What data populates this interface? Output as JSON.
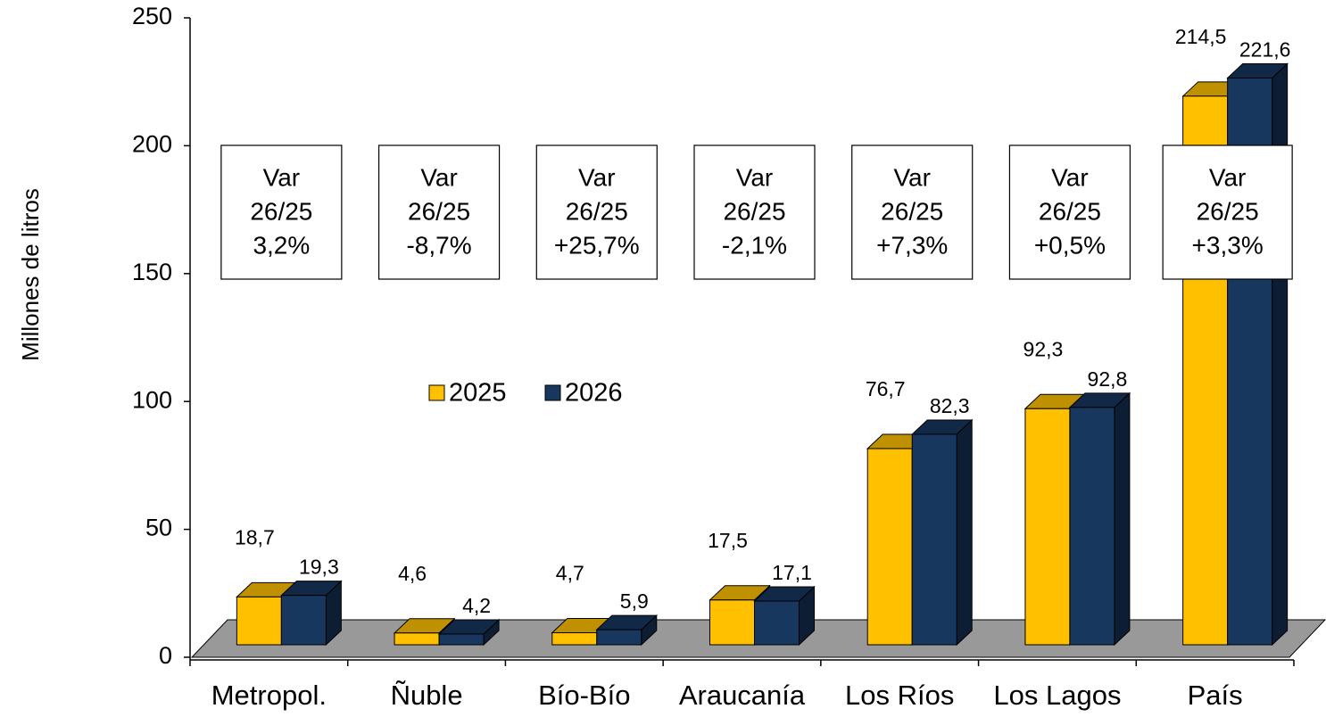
{
  "chart_data": {
    "type": "bar3d",
    "y_label": "Millones de litros",
    "categories": [
      "Metropol.",
      "Ñuble",
      "Bío-Bío",
      "Araucanía",
      "Los Ríos",
      "Los Lagos",
      "País"
    ],
    "series": [
      {
        "name": "2025",
        "color": "#ffc000",
        "values": [
          18.7,
          4.6,
          4.7,
          17.5,
          76.7,
          92.3,
          214.5
        ],
        "value_labels": [
          "18,7",
          "4,6",
          "4,7",
          "17,5",
          "76,7",
          "92,3",
          "214,5"
        ]
      },
      {
        "name": "2026",
        "color": "#17375e",
        "values": [
          19.3,
          4.2,
          5.9,
          17.1,
          82.3,
          92.8,
          221.6
        ],
        "value_labels": [
          "19,3",
          "4,2",
          "5,9",
          "17,1",
          "82,3",
          "92,8",
          "221,6"
        ]
      }
    ],
    "annotations": [
      [
        "Var",
        "26/25",
        "3,2%"
      ],
      [
        "Var",
        "26/25",
        "-8,7%"
      ],
      [
        "Var",
        "26/25",
        "+25,7%"
      ],
      [
        "Var",
        "26/25",
        "-2,1%"
      ],
      [
        "Var",
        "26/25",
        "+7,3%"
      ],
      [
        "Var",
        "26/25",
        "+0,5%"
      ],
      [
        "Var",
        "26/25",
        "+3,3%"
      ]
    ],
    "ylim": [
      0,
      250
    ],
    "yticks": [
      0,
      50,
      100,
      150,
      200,
      250
    ]
  }
}
